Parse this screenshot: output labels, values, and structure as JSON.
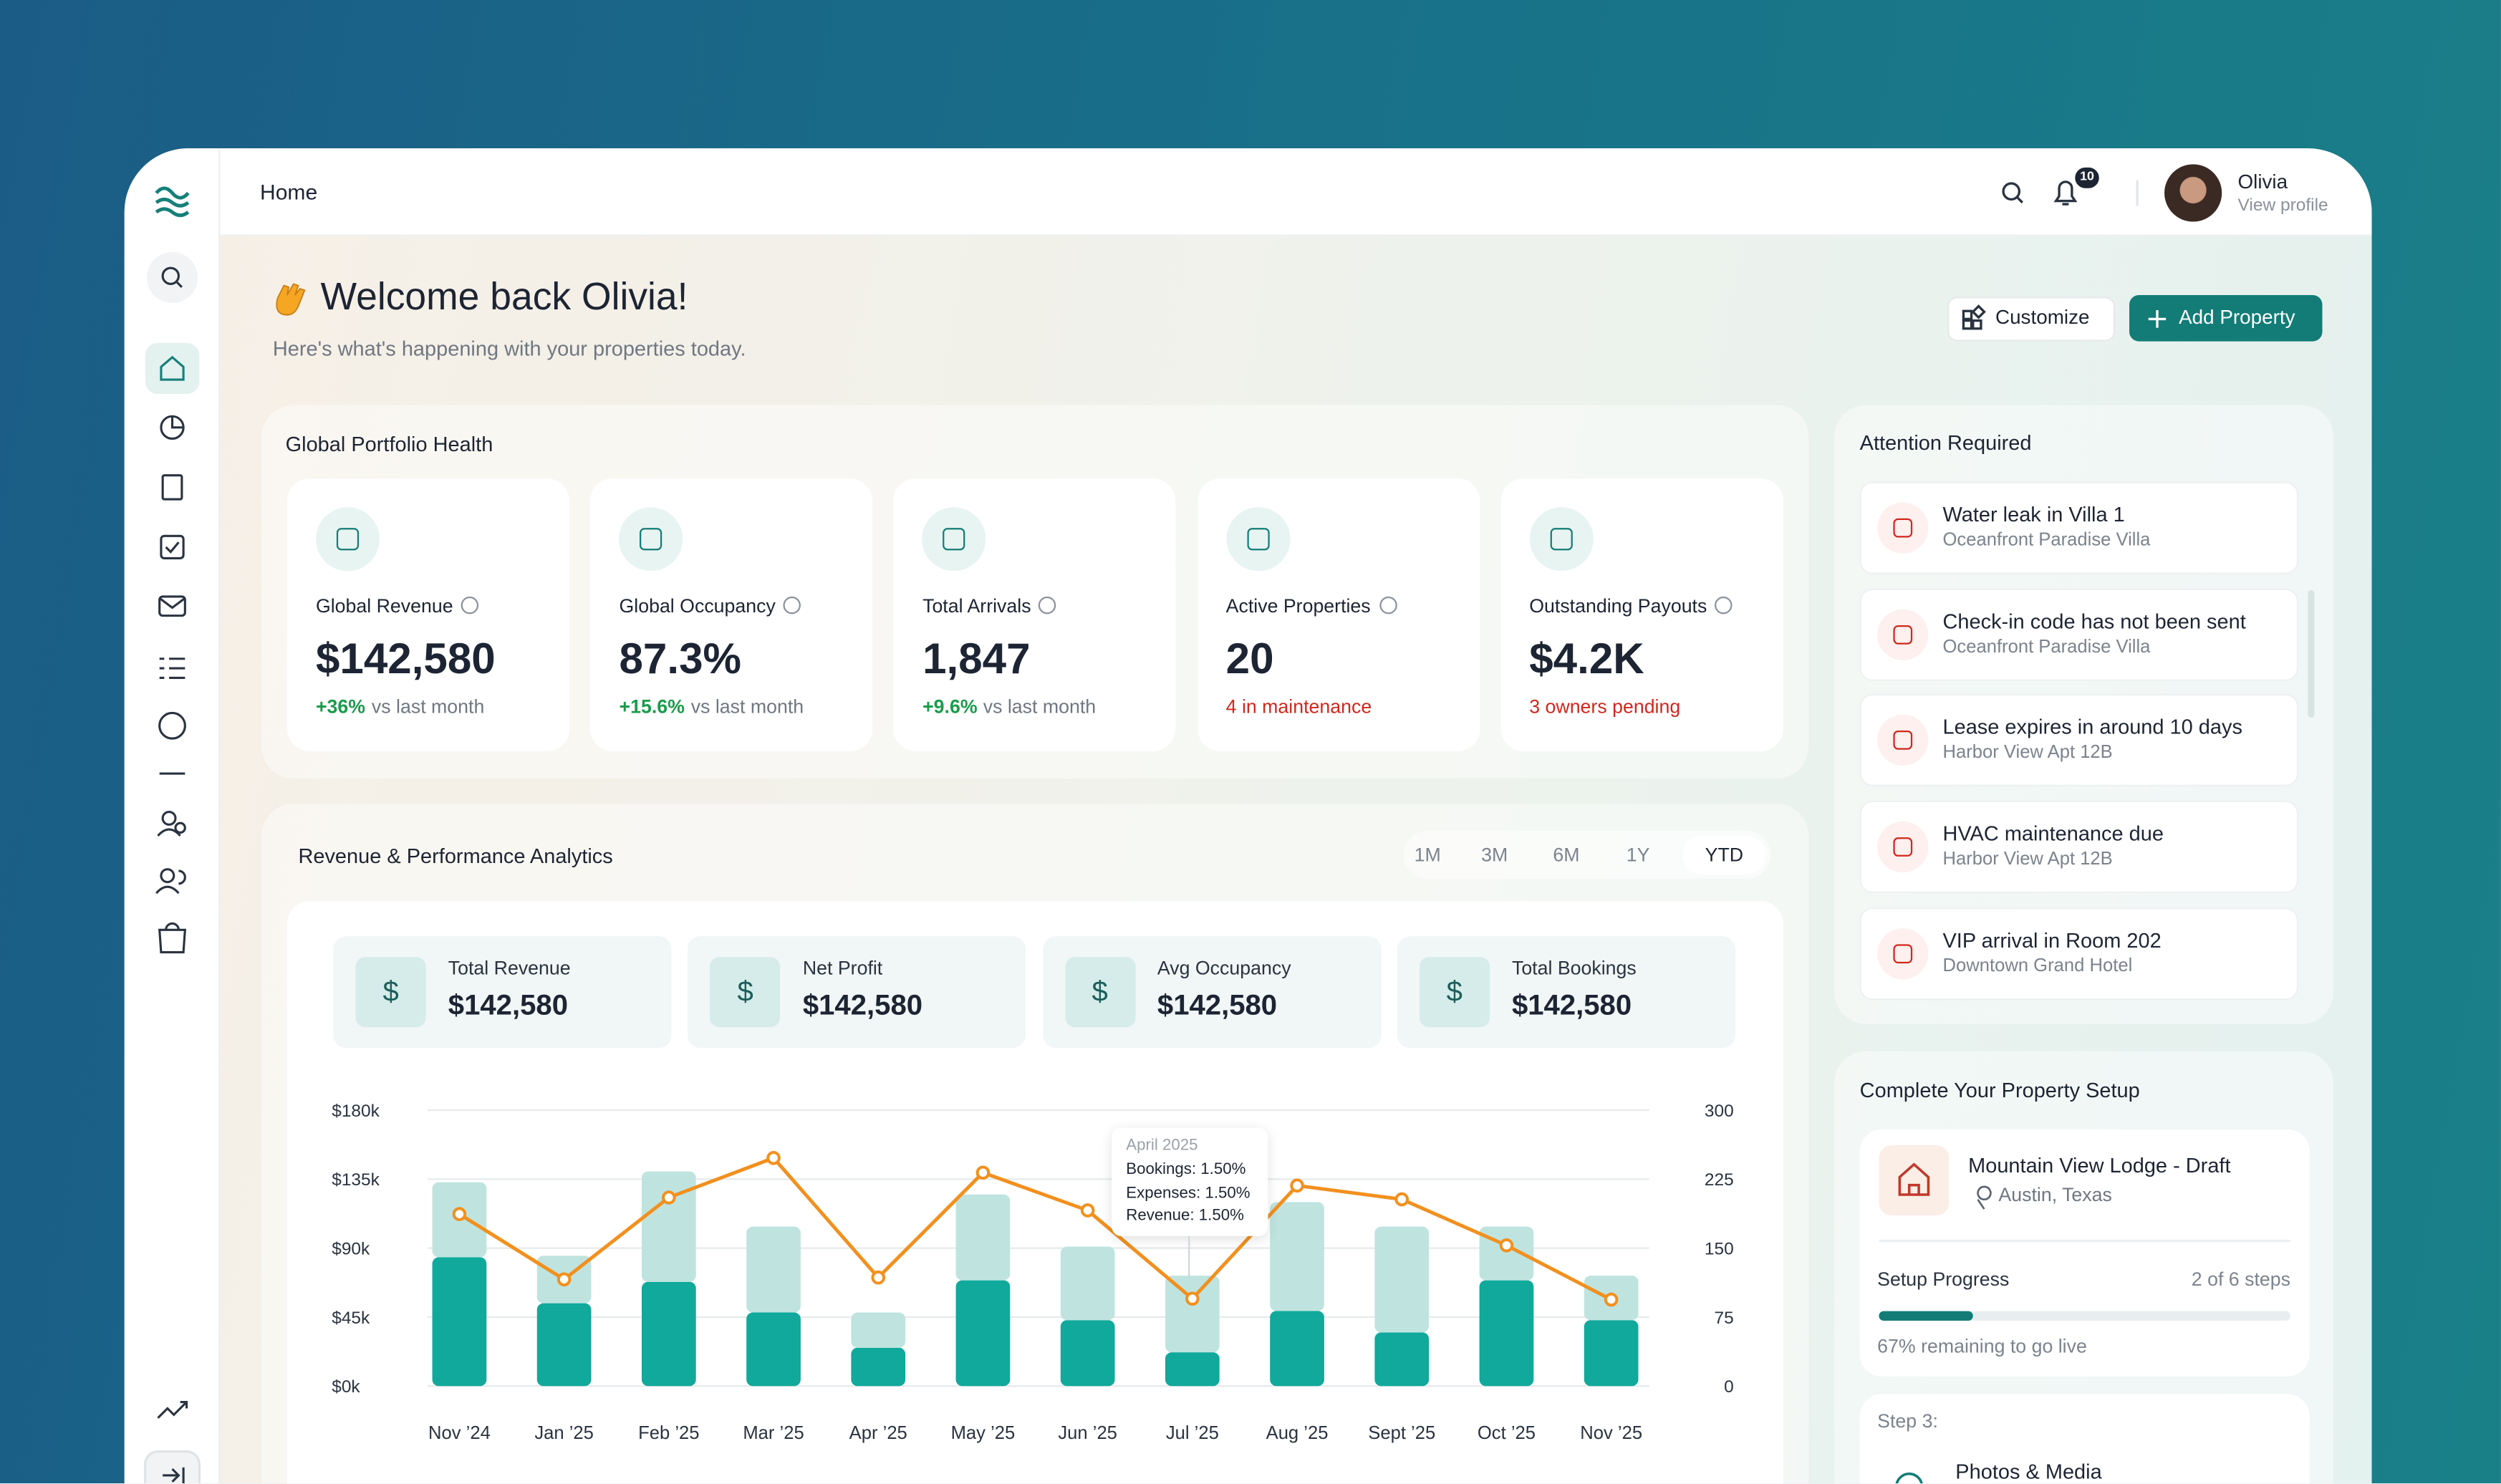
{
  "topbar": {
    "breadcrumb": "Home",
    "notifications": "10",
    "user_name": "Olivia",
    "user_link": "View profile"
  },
  "header": {
    "title": "Welcome back Olivia!",
    "subtitle": "Here's what's happening with your properties today.",
    "buttons": [
      "Customize",
      "Add Property"
    ]
  },
  "portfolio": {
    "title": "Global Portfolio Health",
    "cards": [
      {
        "label": "Global Revenue",
        "value": "$142,580",
        "change": "+36%",
        "note": "vs last month"
      },
      {
        "label": "Global Occupancy",
        "value": "87.3%",
        "change": "+15.6%",
        "note": "vs last month"
      },
      {
        "label": "Total Arrivals",
        "value": "1,847",
        "change": "+9.6%",
        "note": "vs last month"
      },
      {
        "label": "Active Properties",
        "value": "20",
        "alert": "4 in maintenance"
      },
      {
        "label": "Outstanding Payouts",
        "value": "$4.2K",
        "alert": "3 owners pending"
      }
    ]
  },
  "analytics": {
    "title": "Revenue & Performance Analytics",
    "ranges": [
      "1M",
      "3M",
      "6M",
      "1Y",
      "YTD"
    ],
    "active_range": "YTD",
    "stats": [
      {
        "label": "Total Revenue",
        "value": "$142,580"
      },
      {
        "label": "Net Profit",
        "value": "$142,580"
      },
      {
        "label": "Avg Occupancy",
        "value": "$142,580"
      },
      {
        "label": "Total Bookings",
        "value": "$142,580"
      }
    ]
  },
  "chart_data": {
    "type": "bar",
    "stacked": true,
    "categories": [
      "Nov ’24",
      "Jan ’25",
      "Feb ’25",
      "Mar ’25",
      "Apr ’25",
      "May ’25",
      "Jun ’25",
      "Jul ’25",
      "Aug ’25",
      "Sept ’25",
      "Oct ’25",
      "Nov ’25"
    ],
    "series": [
      {
        "color": "#10a99b",
        "values": [
          84000,
          54000,
          68000,
          48000,
          25000,
          69000,
          43000,
          22000,
          49000,
          35000,
          69000,
          43000
        ]
      },
      {
        "color": "#bfe4e0",
        "values": [
          49000,
          31000,
          72000,
          56000,
          23000,
          56000,
          48000,
          50000,
          71000,
          69000,
          35000,
          29000
        ]
      },
      {
        "type": "line",
        "axis": "y2",
        "color": "#f2901e",
        "values": [
          187,
          116,
          205,
          248,
          118,
          232,
          191,
          95,
          218,
          203,
          153,
          94
        ]
      }
    ],
    "ylim": [
      0,
      180000
    ],
    "yticks": [
      {
        "value": 0,
        "label": "$0k"
      },
      {
        "value": 45000,
        "label": "$45k"
      },
      {
        "value": 90000,
        "label": "$90k"
      },
      {
        "value": 135000,
        "label": "$135k"
      },
      {
        "value": 180000,
        "label": "$180k"
      }
    ],
    "y2lim": [
      0,
      300
    ],
    "y2ticks": [
      0,
      75,
      150,
      225,
      300
    ],
    "grid": true,
    "tooltip": {
      "title": "April 2025",
      "lines": [
        "Bookings: 1.50%",
        "Expenses: 1.50%",
        "Revenue: 1.50%"
      ]
    }
  },
  "attention": {
    "title": "Attention Required",
    "items": [
      {
        "title": "Water leak in Villa 1",
        "subtitle": "Oceanfront Paradise Villa"
      },
      {
        "title": "Check-in code has not been sent",
        "subtitle": "Oceanfront Paradise Villa"
      },
      {
        "title": "Lease expires in around 10 days",
        "subtitle": "Harbor View Apt 12B"
      },
      {
        "title": "HVAC maintenance due",
        "subtitle": "Harbor View Apt 12B"
      },
      {
        "title": "VIP arrival in Room 202",
        "subtitle": "Downtown Grand Hotel"
      }
    ]
  },
  "setup": {
    "title": "Complete Your Property Setup",
    "property": "Mountain View Lodge - Draft",
    "location": "Austin, Texas",
    "progress_label": "Setup Progress",
    "progress_steps": "2 of 6 steps",
    "remaining": "67% remaining to go live",
    "step": "Step 3:",
    "step_title": "Photos & Media"
  }
}
